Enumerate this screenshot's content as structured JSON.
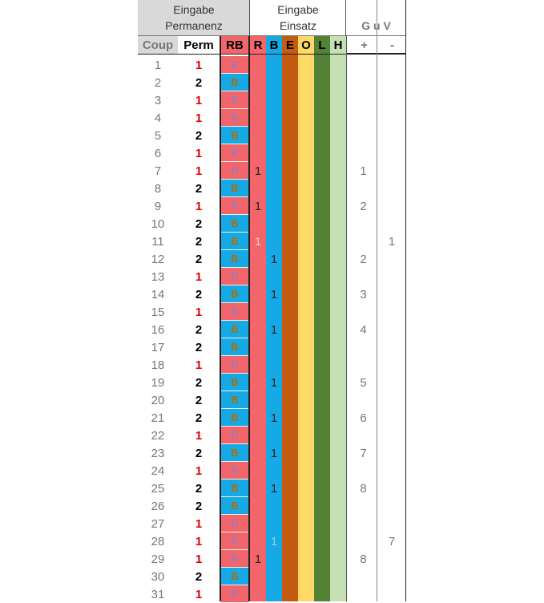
{
  "header": {
    "eingabe_perm_line1": "Eingabe",
    "eingabe_perm_line2": "Permanenz",
    "eingabe_einsatz_line1": "Eingabe",
    "eingabe_einsatz_line2": "Einsatz",
    "guv_title": "G u V",
    "col_coup": "Coup",
    "col_perm": "Perm",
    "col_rb": "RB",
    "col_r": "R",
    "col_b": "B",
    "col_e": "E",
    "col_o": "O",
    "col_l": "L",
    "col_h": "H",
    "col_plus": "+",
    "col_minus": "-"
  },
  "colors": {
    "header_gray": "#d9d9d9",
    "red_bg": "#f2666b",
    "blue_bg": "#15a9e6",
    "e_col": "#c55a11",
    "o_col": "#ffd966",
    "l_col": "#538135",
    "h_col": "#c5e0b3",
    "perm_red_text": "#e00000",
    "perm_black_text": "#000000",
    "rb_r_text": "#7f7fcf",
    "rb_b_text": "#b36b00"
  },
  "rows": [
    {
      "coup": "1",
      "perm": "1",
      "rb": "R",
      "bet_r": "",
      "bet_b": "",
      "plus": "",
      "minus": ""
    },
    {
      "coup": "2",
      "perm": "2",
      "rb": "B",
      "bet_r": "",
      "bet_b": "",
      "plus": "",
      "minus": ""
    },
    {
      "coup": "3",
      "perm": "1",
      "rb": "R",
      "bet_r": "",
      "bet_b": "",
      "plus": "",
      "minus": ""
    },
    {
      "coup": "4",
      "perm": "1",
      "rb": "R",
      "bet_r": "",
      "bet_b": "",
      "plus": "",
      "minus": ""
    },
    {
      "coup": "5",
      "perm": "2",
      "rb": "B",
      "bet_r": "",
      "bet_b": "",
      "plus": "",
      "minus": ""
    },
    {
      "coup": "6",
      "perm": "1",
      "rb": "R",
      "bet_r": "",
      "bet_b": "",
      "plus": "",
      "minus": ""
    },
    {
      "coup": "7",
      "perm": "1",
      "rb": "R",
      "bet_r": "1",
      "bet_b": "",
      "plus": "1",
      "minus": ""
    },
    {
      "coup": "8",
      "perm": "2",
      "rb": "B",
      "bet_r": "",
      "bet_b": "",
      "plus": "",
      "minus": ""
    },
    {
      "coup": "9",
      "perm": "1",
      "rb": "R",
      "bet_r": "1",
      "bet_b": "",
      "plus": "2",
      "minus": ""
    },
    {
      "coup": "10",
      "perm": "2",
      "rb": "B",
      "bet_r": "",
      "bet_b": "",
      "plus": "",
      "minus": ""
    },
    {
      "coup": "11",
      "perm": "2",
      "rb": "B",
      "bet_r": "1",
      "bet_b": "",
      "plus": "",
      "minus": "1",
      "bet_r_faded": true
    },
    {
      "coup": "12",
      "perm": "2",
      "rb": "B",
      "bet_r": "",
      "bet_b": "1",
      "plus": "2",
      "minus": ""
    },
    {
      "coup": "13",
      "perm": "1",
      "rb": "R",
      "bet_r": "",
      "bet_b": "",
      "plus": "",
      "minus": ""
    },
    {
      "coup": "14",
      "perm": "2",
      "rb": "B",
      "bet_r": "",
      "bet_b": "1",
      "plus": "3",
      "minus": ""
    },
    {
      "coup": "15",
      "perm": "1",
      "rb": "R",
      "bet_r": "",
      "bet_b": "",
      "plus": "",
      "minus": ""
    },
    {
      "coup": "16",
      "perm": "2",
      "rb": "B",
      "bet_r": "",
      "bet_b": "1",
      "plus": "4",
      "minus": ""
    },
    {
      "coup": "17",
      "perm": "2",
      "rb": "B",
      "bet_r": "",
      "bet_b": "",
      "plus": "",
      "minus": ""
    },
    {
      "coup": "18",
      "perm": "1",
      "rb": "R",
      "bet_r": "",
      "bet_b": "",
      "plus": "",
      "minus": ""
    },
    {
      "coup": "19",
      "perm": "2",
      "rb": "B",
      "bet_r": "",
      "bet_b": "1",
      "plus": "5",
      "minus": ""
    },
    {
      "coup": "20",
      "perm": "2",
      "rb": "B",
      "bet_r": "",
      "bet_b": "",
      "plus": "",
      "minus": ""
    },
    {
      "coup": "21",
      "perm": "2",
      "rb": "B",
      "bet_r": "",
      "bet_b": "1",
      "plus": "6",
      "minus": ""
    },
    {
      "coup": "22",
      "perm": "1",
      "rb": "R",
      "bet_r": "",
      "bet_b": "",
      "plus": "",
      "minus": ""
    },
    {
      "coup": "23",
      "perm": "2",
      "rb": "B",
      "bet_r": "",
      "bet_b": "1",
      "plus": "7",
      "minus": ""
    },
    {
      "coup": "24",
      "perm": "1",
      "rb": "R",
      "bet_r": "",
      "bet_b": "",
      "plus": "",
      "minus": ""
    },
    {
      "coup": "25",
      "perm": "2",
      "rb": "B",
      "bet_r": "",
      "bet_b": "1",
      "plus": "8",
      "minus": ""
    },
    {
      "coup": "26",
      "perm": "2",
      "rb": "B",
      "bet_r": "",
      "bet_b": "",
      "plus": "",
      "minus": ""
    },
    {
      "coup": "27",
      "perm": "1",
      "rb": "R",
      "bet_r": "",
      "bet_b": "",
      "plus": "",
      "minus": ""
    },
    {
      "coup": "28",
      "perm": "1",
      "rb": "R",
      "bet_r": "",
      "bet_b": "1",
      "plus": "",
      "minus": "7",
      "bet_b_faded": true
    },
    {
      "coup": "29",
      "perm": "1",
      "rb": "R",
      "bet_r": "1",
      "bet_b": "",
      "plus": "8",
      "minus": ""
    },
    {
      "coup": "30",
      "perm": "2",
      "rb": "B",
      "bet_r": "",
      "bet_b": "",
      "plus": "",
      "minus": ""
    },
    {
      "coup": "31",
      "perm": "1",
      "rb": "R",
      "bet_r": "",
      "bet_b": "",
      "plus": "",
      "minus": ""
    }
  ]
}
